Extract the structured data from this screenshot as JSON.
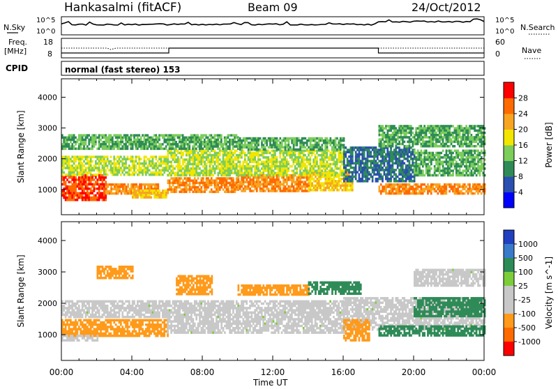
{
  "header": {
    "station": "Hankasalmi (fitACF)",
    "beam": "Beam 09",
    "date": "24/Oct/2012"
  },
  "noise_panel": {
    "left_label": "N.Sky",
    "left_ticks": [
      "10^5",
      "10^0"
    ],
    "right_ticks": [
      "10^5",
      "10^0"
    ],
    "right_label": "N.Search"
  },
  "freq_panel": {
    "left_label_line1": "Freq.",
    "left_label_line2": "[MHz]",
    "left_ticks": [
      "18",
      "8"
    ],
    "right_ticks": [
      "60",
      "0"
    ],
    "right_label": "Nave"
  },
  "cpid_panel": {
    "label": "CPID",
    "mode_text": "normal (fast stereo) 153"
  },
  "chart_data": [
    {
      "type": "heatmap",
      "title": "",
      "xlabel": "Time UT",
      "ylabel": "Slant Range [km]",
      "xlim": [
        "00:00",
        "24:00"
      ],
      "ylim": [
        180,
        4600
      ],
      "x_ticks": [
        "00:00",
        "04:00",
        "08:00",
        "12:00",
        "16:00",
        "20:00",
        "00:00"
      ],
      "y_ticks": [
        1000,
        2000,
        3000,
        4000
      ],
      "colorbar": {
        "label": "Power [dB]",
        "ticks": [
          "28",
          "24",
          "20",
          "16",
          "12",
          "8",
          "4"
        ],
        "colors": [
          "#0000ff",
          "#2a4fb0",
          "#2e8b57",
          "#7ccd5a",
          "#f2e600",
          "#f7a521",
          "#ff6a00",
          "#ff0000"
        ]
      },
      "bands": [
        {
          "t0": 0.0,
          "t1": 2.5,
          "r0": 700,
          "r1": 1500,
          "value": 28
        },
        {
          "t0": 2.5,
          "t1": 5.5,
          "r0": 850,
          "r1": 1200,
          "value": 24
        },
        {
          "t0": 4.0,
          "t1": 6.0,
          "r0": 750,
          "r1": 1000,
          "value": 20
        },
        {
          "t0": 6.0,
          "t1": 10.0,
          "r0": 900,
          "r1": 1400,
          "value": 24
        },
        {
          "t0": 10.0,
          "t1": 14.0,
          "r0": 950,
          "r1": 1500,
          "value": 24
        },
        {
          "t0": 14.0,
          "t1": 16.5,
          "r0": 1000,
          "r1": 1600,
          "value": 20
        },
        {
          "t0": 18.0,
          "t1": 24.0,
          "r0": 900,
          "r1": 1200,
          "value": 24
        },
        {
          "t0": 0.0,
          "t1": 6.0,
          "r0": 1500,
          "r1": 2100,
          "value": 16
        },
        {
          "t0": 6.0,
          "t1": 16.0,
          "r0": 1500,
          "r1": 2300,
          "value": 16
        },
        {
          "t0": 16.0,
          "t1": 20.0,
          "r0": 1300,
          "r1": 2400,
          "value": 8
        },
        {
          "t0": 20.0,
          "t1": 24.0,
          "r0": 1500,
          "r1": 2300,
          "value": 12
        },
        {
          "t0": 0.0,
          "t1": 10.0,
          "r0": 2300,
          "r1": 2800,
          "value": 12
        },
        {
          "t0": 10.0,
          "t1": 16.0,
          "r0": 2300,
          "r1": 2700,
          "value": 12
        },
        {
          "t0": 18.0,
          "t1": 24.0,
          "r0": 2400,
          "r1": 3100,
          "value": 12
        }
      ]
    },
    {
      "type": "heatmap",
      "title": "",
      "xlabel": "Time UT",
      "ylabel": "Slant Range [km]",
      "xlim": [
        "00:00",
        "24:00"
      ],
      "ylim": [
        180,
        4600
      ],
      "x_ticks": [
        "00:00",
        "04:00",
        "08:00",
        "12:00",
        "16:00",
        "20:00",
        "00:00"
      ],
      "y_ticks": [
        1000,
        2000,
        3000,
        4000
      ],
      "colorbar": {
        "label": "Velocity [m s^-1]",
        "ticks": [
          "1000",
          "500",
          "100",
          "25",
          "-25",
          "-100",
          "-500",
          "-1000"
        ],
        "colors": [
          "#2040c0",
          "#3a7acb",
          "#2e8b57",
          "#7ccd3a",
          "#c8c8c8",
          "#c8c8c8",
          "#ff9a1a",
          "#ff6a00",
          "#ff0000"
        ]
      },
      "bands": [
        {
          "t0": 0.0,
          "t1": 6.0,
          "r0": 1000,
          "r1": 1500,
          "value": -100
        },
        {
          "t0": 0.0,
          "t1": 2.0,
          "r0": 850,
          "r1": 1000,
          "value": 0
        },
        {
          "t0": 6.0,
          "t1": 16.0,
          "r0": 1100,
          "r1": 2100,
          "value": 0
        },
        {
          "t0": 0.0,
          "t1": 6.0,
          "r0": 1600,
          "r1": 2100,
          "value": 0
        },
        {
          "t0": 16.0,
          "t1": 24.0,
          "r0": 1200,
          "r1": 2200,
          "value": 0
        },
        {
          "t0": 6.5,
          "t1": 8.5,
          "r0": 2300,
          "r1": 2900,
          "value": -100
        },
        {
          "t0": 2.0,
          "t1": 4.0,
          "r0": 2800,
          "r1": 3200,
          "value": -100
        },
        {
          "t0": 10.0,
          "t1": 14.0,
          "r0": 2300,
          "r1": 2600,
          "value": -100
        },
        {
          "t0": 16.0,
          "t1": 17.5,
          "r0": 800,
          "r1": 1500,
          "value": -100
        },
        {
          "t0": 18.0,
          "t1": 24.0,
          "r0": 1000,
          "r1": 1300,
          "value": 100
        },
        {
          "t0": 14.0,
          "t1": 17.0,
          "r0": 2300,
          "r1": 2700,
          "value": 100
        },
        {
          "t0": 20.0,
          "t1": 24.0,
          "r0": 1600,
          "r1": 2200,
          "value": 100
        },
        {
          "t0": 20.0,
          "t1": 24.0,
          "r0": 2600,
          "r1": 3100,
          "value": 0
        }
      ]
    }
  ],
  "shared_x_label": "Time UT"
}
